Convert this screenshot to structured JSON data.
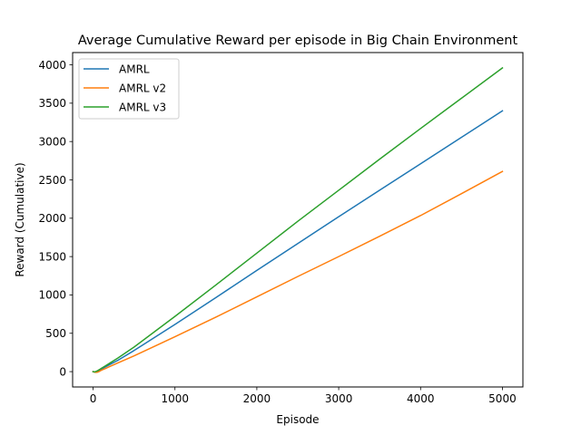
{
  "chart_data": {
    "type": "line",
    "title": "Average Cumulative Reward per episode in Big Chain Environment",
    "xlabel": "Episode",
    "ylabel": "Reward (Cumulative)",
    "xlim": [
      -250,
      5250
    ],
    "ylim": [
      -200,
      4160
    ],
    "xticks": [
      0,
      1000,
      2000,
      3000,
      4000,
      5000
    ],
    "yticks": [
      0,
      500,
      1000,
      1500,
      2000,
      2500,
      3000,
      3500,
      4000
    ],
    "grid": false,
    "legend": {
      "placement": "top-left"
    },
    "series": [
      {
        "name": "AMRL",
        "color": "#1f77b4",
        "x": [
          0,
          20,
          40,
          60,
          80,
          100,
          150,
          200,
          300,
          500,
          1000,
          1500,
          2000,
          2500,
          3000,
          3500,
          4000,
          4500,
          5000
        ],
        "y": [
          0,
          -5,
          0,
          8,
          20,
          33,
          62,
          90,
          146,
          275,
          615,
          965,
          1320,
          1670,
          2020,
          2365,
          2710,
          3055,
          3400
        ]
      },
      {
        "name": "AMRL v2",
        "color": "#ff7f0e",
        "x": [
          0,
          20,
          40,
          60,
          80,
          100,
          150,
          200,
          300,
          500,
          1000,
          1500,
          2000,
          2500,
          3000,
          3500,
          4000,
          4500,
          5000
        ],
        "y": [
          0,
          -8,
          -10,
          -5,
          5,
          18,
          40,
          65,
          112,
          205,
          455,
          710,
          975,
          1240,
          1500,
          1765,
          2035,
          2320,
          2610
        ]
      },
      {
        "name": "AMRL v3",
        "color": "#2ca02c",
        "x": [
          0,
          20,
          40,
          60,
          80,
          100,
          150,
          200,
          300,
          500,
          1000,
          1500,
          2000,
          2500,
          3000,
          3500,
          4000,
          4500,
          5000
        ],
        "y": [
          0,
          -3,
          5,
          15,
          28,
          42,
          75,
          108,
          175,
          320,
          720,
          1130,
          1545,
          1960,
          2365,
          2770,
          3170,
          3565,
          3960
        ]
      }
    ]
  }
}
